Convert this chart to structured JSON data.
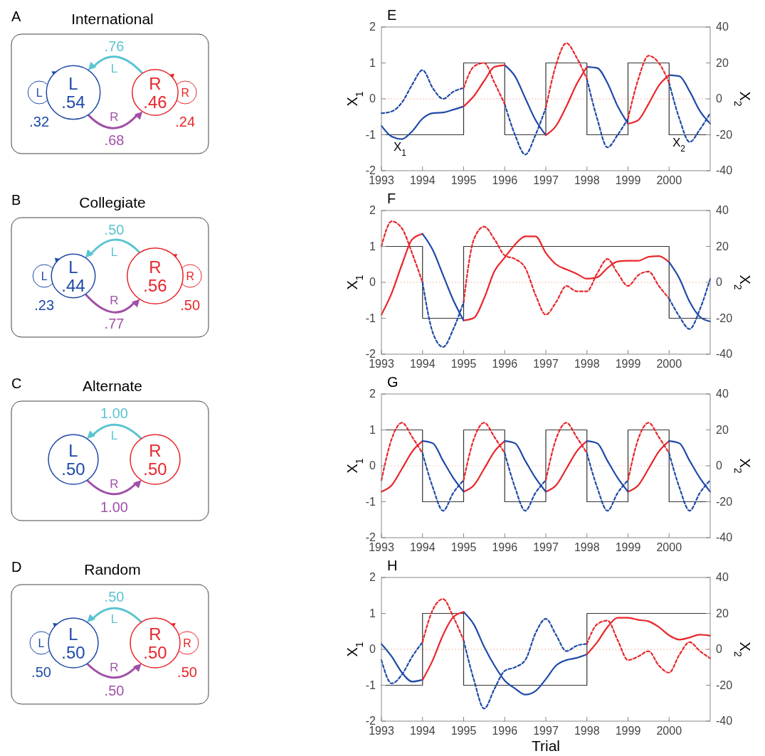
{
  "chart_data": [
    {
      "type": "other",
      "title": "International",
      "annotations": [
        "A",
        "L",
        ".32",
        "L",
        ".76",
        "R",
        ".68",
        "R",
        ".24"
      ],
      "categories": [
        "L",
        "R"
      ],
      "values": [
        0.54,
        0.46
      ],
      "value_labels": [
        ".54",
        ".46"
      ],
      "colors": [
        "#1f4aa8",
        "#e8262b"
      ]
    },
    {
      "type": "line",
      "title": "E",
      "ylabel": "X$_{1}$",
      "y2label": "X$_{2}$",
      "annotations": [
        "X$_{1}$",
        "X$_{2}$"
      ],
      "x": [
        1993,
        1993.25,
        1993.5,
        1993.75,
        1994,
        1994.25,
        1994.5,
        1994.75,
        1995,
        1995.25,
        1995.5,
        1995.75,
        1996,
        1996.25,
        1996.5,
        1996.75,
        1997,
        1997.25,
        1997.5,
        1997.75,
        1998,
        1998.25,
        1998.5,
        1998.75,
        1999,
        1999.25,
        1999.5,
        1999.75,
        2000,
        2000.25,
        2000.5,
        2000.75,
        2001
      ],
      "xlim": [
        1993,
        2001
      ],
      "xticks": [
        1993,
        1994,
        1995,
        1996,
        1997,
        1998,
        1999,
        2000
      ],
      "ylim": [
        -2,
        2
      ],
      "yticks": [
        -2,
        -1,
        0,
        1,
        2
      ],
      "y2lim": [
        -40,
        40
      ],
      "y2ticks": [
        -40,
        -20,
        0,
        20,
        40
      ],
      "ref_lines": [
        {
          "axis": "y",
          "value": 0,
          "color": "#f4a08a",
          "line_style": "dotted"
        }
      ],
      "series": [
        {
          "type": "step",
          "color": "#333333",
          "x": [
            1993,
            1995,
            1996,
            1997,
            1998,
            1999,
            2000,
            2001
          ],
          "values": [
            -1,
            1,
            -1,
            1,
            -1,
            1,
            -1,
            -1
          ]
        },
        {
          "color": "#1f4aa8",
          "line_style": "solid",
          "values": [
            -0.75,
            -1.05,
            -1.12,
            -0.9,
            -0.55,
            -0.4,
            -0.38,
            -0.3,
            -0.21,
            null,
            null,
            null,
            0.94,
            0.63,
            0.02,
            -0.59,
            -1.01,
            null,
            null,
            null,
            0.89,
            0.86,
            0.44,
            -0.21,
            -0.69,
            null,
            null,
            null,
            0.66,
            0.63,
            0.21,
            -0.34,
            -0.69
          ]
        },
        {
          "color": "#e8262b",
          "line_style": "solid",
          "values": [
            null,
            null,
            null,
            null,
            null,
            null,
            null,
            null,
            -0.21,
            0.08,
            0.5,
            0.89,
            0.94,
            null,
            null,
            null,
            -1.01,
            -0.75,
            -0.21,
            0.41,
            0.89,
            null,
            null,
            null,
            -0.69,
            -0.59,
            -0.14,
            0.37,
            0.66,
            null,
            null,
            null,
            null
          ]
        },
        {
          "color": "#1f4aa8",
          "line_style": "dashed",
          "axis": "y2",
          "values": [
            -8,
            -7,
            -2,
            8,
            16,
            6,
            0,
            4,
            6,
            null,
            null,
            null,
            -3,
            -20,
            -31,
            -20,
            -5,
            null,
            null,
            null,
            11,
            -11,
            -27,
            -20,
            -11,
            null,
            null,
            null,
            9,
            -11,
            -24,
            -17,
            -8
          ]
        },
        {
          "color": "#e8262b",
          "line_style": "dashed",
          "axis": "y2",
          "values": [
            null,
            null,
            null,
            null,
            null,
            null,
            null,
            null,
            6,
            18,
            20,
            9,
            -3,
            null,
            null,
            null,
            -5,
            19,
            31,
            23,
            11,
            null,
            null,
            null,
            -11,
            11,
            24,
            20,
            9,
            null,
            null,
            null,
            null
          ]
        }
      ]
    },
    {
      "type": "other",
      "title": "Collegiate",
      "annotations": [
        "B",
        "L",
        ".23",
        "L",
        ".50",
        "R",
        ".77",
        "R",
        ".50"
      ],
      "categories": [
        "L",
        "R"
      ],
      "values": [
        0.44,
        0.56
      ],
      "value_labels": [
        ".44",
        ".56"
      ],
      "colors": [
        "#1f4aa8",
        "#e8262b"
      ]
    },
    {
      "type": "line",
      "title": "F",
      "ylabel": "X$_{1}$",
      "y2label": "X$_{2}$",
      "x": [
        1993,
        1993.25,
        1993.5,
        1993.75,
        1994,
        1994.25,
        1994.5,
        1994.75,
        1995,
        1995.25,
        1995.5,
        1995.75,
        1996,
        1996.25,
        1996.5,
        1996.75,
        1997,
        1997.25,
        1997.5,
        1997.75,
        1998,
        1998.25,
        1998.5,
        1998.75,
        1999,
        1999.25,
        1999.5,
        1999.75,
        2000,
        2000.25,
        2000.5,
        2000.75,
        2001
      ],
      "xlim": [
        1993,
        2001
      ],
      "xticks": [
        1993,
        1994,
        1995,
        1996,
        1997,
        1998,
        1999,
        2000
      ],
      "ylim": [
        -2,
        2
      ],
      "yticks": [
        -2,
        -1,
        0,
        1,
        2
      ],
      "y2lim": [
        -40,
        40
      ],
      "y2ticks": [
        -40,
        -20,
        0,
        20,
        40
      ],
      "ref_lines": [
        {
          "axis": "y",
          "value": 0,
          "color": "#f4a08a",
          "line_style": "dotted"
        }
      ],
      "series": [
        {
          "type": "step",
          "color": "#333333",
          "x": [
            1993,
            1994,
            1995,
            2000,
            2001
          ],
          "values": [
            1,
            -1,
            1,
            -1,
            -1
          ]
        },
        {
          "color": "#e8262b",
          "line_style": "solid",
          "values": [
            -0.9,
            -0.3,
            0.5,
            1.2,
            1.35,
            null,
            null,
            null,
            -1.06,
            -0.99,
            -0.44,
            0.31,
            0.69,
            1.05,
            1.28,
            1.28,
            0.82,
            0.5,
            0.36,
            0.24,
            0.1,
            0.14,
            0.4,
            0.58,
            0.6,
            0.6,
            0.71,
            0.73,
            0.56,
            null,
            null,
            null,
            null
          ]
        },
        {
          "color": "#1f4aa8",
          "line_style": "solid",
          "values": [
            null,
            null,
            null,
            null,
            1.35,
            0.9,
            0.2,
            -0.5,
            -1.06,
            null,
            null,
            null,
            null,
            null,
            null,
            null,
            null,
            null,
            null,
            null,
            null,
            null,
            null,
            null,
            null,
            null,
            null,
            null,
            0.56,
            0.11,
            -0.54,
            -0.96,
            -1.09
          ]
        },
        {
          "color": "#e8262b",
          "line_style": "dashed",
          "axis": "y2",
          "values": [
            20,
            34,
            30,
            16,
            0,
            null,
            null,
            null,
            -11,
            24,
            31,
            24,
            15,
            13,
            8,
            -7,
            -18,
            -11,
            -2,
            -5,
            -5,
            5,
            13,
            5,
            -2,
            4,
            6,
            -2,
            -9,
            null,
            null,
            null,
            null
          ]
        },
        {
          "color": "#1f4aa8",
          "line_style": "dashed",
          "axis": "y2",
          "values": [
            null,
            null,
            null,
            null,
            0,
            -28,
            -36,
            -26,
            -11,
            null,
            null,
            null,
            null,
            null,
            null,
            null,
            null,
            null,
            null,
            null,
            null,
            null,
            null,
            null,
            null,
            null,
            null,
            null,
            -9,
            -19,
            -26,
            -15,
            2
          ]
        }
      ]
    },
    {
      "type": "other",
      "title": "Alternate",
      "annotations": [
        "C",
        null,
        null,
        "L",
        "1.00",
        "R",
        "1.00",
        null,
        null
      ],
      "categories": [
        "L",
        "R"
      ],
      "values": [
        0.5,
        0.5
      ],
      "value_labels": [
        ".50",
        ".50"
      ],
      "colors": [
        "#1f4aa8",
        "#e8262b"
      ]
    },
    {
      "type": "line",
      "title": "G",
      "ylabel": "X$_{1}$",
      "y2label": "X$_{2}$",
      "x": [
        1993,
        1993.25,
        1993.5,
        1993.75,
        1994,
        1994.25,
        1994.5,
        1994.75,
        1995,
        1995.25,
        1995.5,
        1995.75,
        1996,
        1996.25,
        1996.5,
        1996.75,
        1997,
        1997.25,
        1997.5,
        1997.75,
        1998,
        1998.25,
        1998.5,
        1998.75,
        1999,
        1999.25,
        1999.5,
        1999.75,
        2000,
        2000.25,
        2000.5,
        2000.75,
        2001
      ],
      "xlim": [
        1993,
        2001
      ],
      "xticks": [
        1993,
        1994,
        1995,
        1996,
        1997,
        1998,
        1999,
        2000
      ],
      "ylim": [
        -2,
        2
      ],
      "yticks": [
        -2,
        -1,
        0,
        1,
        2
      ],
      "y2lim": [
        -40,
        40
      ],
      "y2ticks": [
        -40,
        -20,
        0,
        20,
        40
      ],
      "ref_lines": [
        {
          "axis": "y",
          "value": 0,
          "color": "#f4c0b0",
          "line_style": "dotted"
        }
      ],
      "series": [
        {
          "type": "step",
          "color": "#333333",
          "x": [
            1993,
            1994,
            1995,
            1996,
            1997,
            1998,
            1999,
            2000,
            2001
          ],
          "values": [
            1,
            -1,
            1,
            -1,
            1,
            -1,
            1,
            -1,
            -1
          ]
        },
        {
          "color": "#e8262b",
          "line_style": "solid",
          "values": [
            -0.72,
            -0.54,
            -0.08,
            0.4,
            0.69,
            null,
            null,
            null,
            -0.72,
            -0.54,
            -0.08,
            0.4,
            0.69,
            null,
            null,
            null,
            -0.72,
            -0.54,
            -0.08,
            0.4,
            0.69,
            null,
            null,
            null,
            -0.72,
            -0.54,
            -0.08,
            0.4,
            0.69,
            null,
            null,
            null,
            null
          ]
        },
        {
          "color": "#1f4aa8",
          "line_style": "solid",
          "values": [
            null,
            null,
            null,
            null,
            0.69,
            0.63,
            0.14,
            -0.34,
            -0.72,
            null,
            null,
            null,
            0.69,
            0.63,
            0.14,
            -0.34,
            -0.72,
            null,
            null,
            null,
            0.69,
            0.63,
            0.14,
            -0.34,
            -0.72,
            null,
            null,
            null,
            0.69,
            0.63,
            0.14,
            -0.34,
            -0.72
          ]
        },
        {
          "color": "#e8262b",
          "line_style": "dashed",
          "axis": "y2",
          "values": [
            -8,
            15,
            24,
            16,
            7,
            null,
            null,
            null,
            -8,
            15,
            24,
            16,
            7,
            null,
            null,
            null,
            -8,
            15,
            24,
            16,
            7,
            null,
            null,
            null,
            -8,
            15,
            24,
            16,
            7,
            null,
            null,
            null,
            null
          ]
        },
        {
          "color": "#1f4aa8",
          "line_style": "dashed",
          "axis": "y2",
          "values": [
            null,
            null,
            null,
            null,
            7,
            -12,
            -25,
            -15,
            -8,
            null,
            null,
            null,
            7,
            -12,
            -25,
            -15,
            -8,
            null,
            null,
            null,
            7,
            -12,
            -25,
            -15,
            -8,
            null,
            null,
            null,
            7,
            -12,
            -25,
            -15,
            -8
          ]
        }
      ]
    },
    {
      "type": "other",
      "title": "Random",
      "annotations": [
        "D",
        "L",
        ".50",
        "L",
        ".50",
        "R",
        ".50",
        "R",
        ".50"
      ],
      "categories": [
        "L",
        "R"
      ],
      "values": [
        0.5,
        0.5
      ],
      "value_labels": [
        ".50",
        ".50"
      ],
      "colors": [
        "#1f4aa8",
        "#e8262b"
      ]
    },
    {
      "type": "line",
      "title": "H",
      "xlabel": "Trial",
      "ylabel": "X$_{1}$",
      "y2label": "X$_{2}$",
      "x": [
        1993,
        1993.25,
        1993.5,
        1993.75,
        1994,
        1994.25,
        1994.5,
        1994.75,
        1995,
        1995.25,
        1995.5,
        1995.75,
        1996,
        1996.25,
        1996.5,
        1996.75,
        1997,
        1997.25,
        1997.5,
        1997.75,
        1998,
        1998.25,
        1998.5,
        1998.75,
        1999,
        1999.25,
        1999.5,
        1999.75,
        2000,
        2000.25,
        2000.5,
        2000.75,
        2001
      ],
      "xlim": [
        1993,
        2001
      ],
      "xticks": [
        1993,
        1994,
        1995,
        1996,
        1997,
        1998,
        1999,
        2000
      ],
      "ylim": [
        -2,
        2
      ],
      "yticks": [
        -2,
        -1,
        0,
        1,
        2
      ],
      "y2lim": [
        -40,
        40
      ],
      "y2ticks": [
        -40,
        -20,
        0,
        20,
        40
      ],
      "ref_lines": [
        {
          "axis": "y",
          "value": 0,
          "color": "#f4a08a",
          "line_style": "dotted"
        }
      ],
      "series": [
        {
          "type": "step",
          "color": "#333333",
          "x": [
            1993,
            1994,
            1995,
            1998,
            2001
          ],
          "values": [
            -1,
            1,
            -1,
            1,
            1
          ]
        },
        {
          "color": "#1f4aa8",
          "line_style": "solid",
          "values": [
            0.15,
            -0.2,
            -0.65,
            -0.9,
            -0.85,
            null,
            null,
            null,
            1.04,
            0.69,
            0.07,
            -0.45,
            -0.87,
            -1.09,
            -1.26,
            -1.16,
            -0.83,
            -0.45,
            -0.3,
            -0.24,
            -0.14,
            null,
            null,
            null,
            null,
            null,
            null,
            null,
            null,
            null,
            null,
            null,
            null
          ]
        },
        {
          "color": "#e8262b",
          "line_style": "solid",
          "values": [
            null,
            null,
            null,
            null,
            -0.85,
            -0.3,
            0.4,
            0.9,
            1.04,
            null,
            null,
            null,
            null,
            null,
            null,
            null,
            null,
            null,
            null,
            null,
            -0.14,
            0.2,
            0.62,
            0.88,
            0.88,
            0.82,
            0.78,
            0.62,
            0.39,
            0.27,
            0.33,
            0.41,
            0.38
          ]
        },
        {
          "color": "#1f4aa8",
          "line_style": "dashed",
          "axis": "y2",
          "values": [
            -6,
            -19,
            -14,
            -4,
            4,
            null,
            null,
            null,
            5,
            -17,
            -33,
            -22,
            -12,
            -10,
            -6,
            9,
            17,
            8,
            -1,
            2,
            3,
            null,
            null,
            null,
            null,
            null,
            null,
            null,
            null,
            null,
            null,
            null,
            null
          ]
        },
        {
          "color": "#e8262b",
          "line_style": "dashed",
          "axis": "y2",
          "values": [
            null,
            null,
            null,
            null,
            4,
            22,
            28,
            18,
            5,
            null,
            null,
            null,
            null,
            null,
            null,
            null,
            null,
            null,
            null,
            null,
            3,
            14,
            16,
            5,
            -6,
            -4,
            -1,
            -9,
            -13,
            -3,
            4,
            -1,
            -5
          ]
        }
      ]
    }
  ]
}
